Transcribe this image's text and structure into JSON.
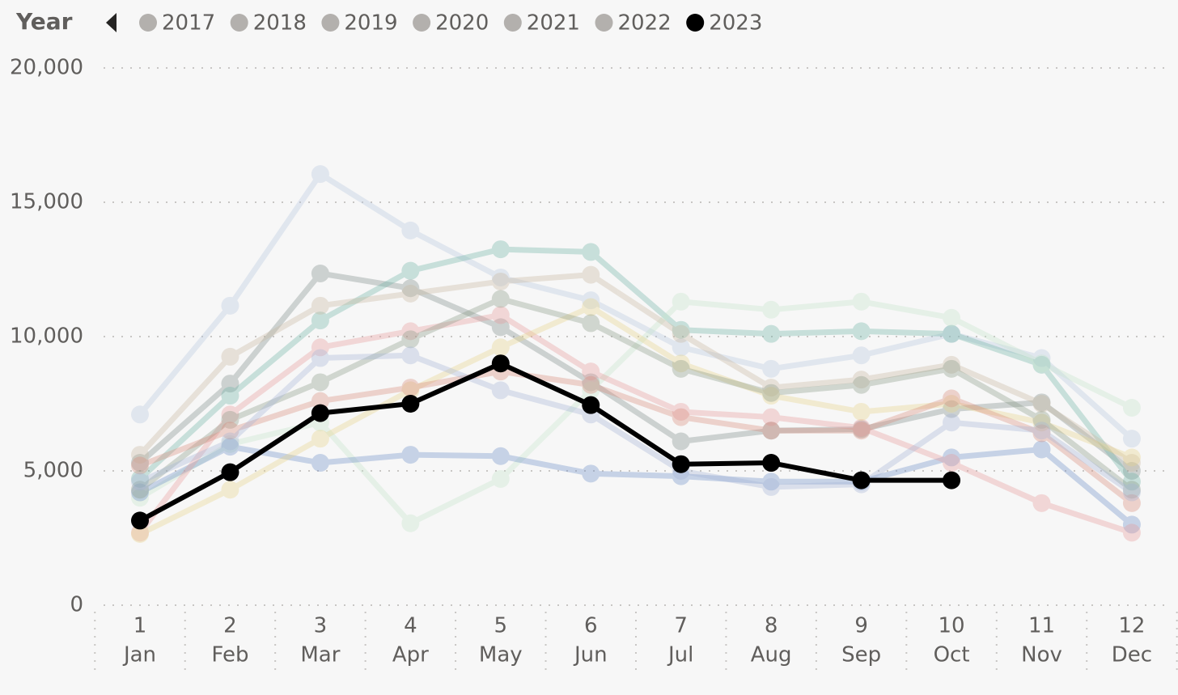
{
  "chart_data": {
    "type": "line",
    "legend_title": "Year",
    "month_numbers": [
      1,
      2,
      3,
      4,
      5,
      6,
      7,
      8,
      9,
      10,
      11,
      12
    ],
    "categories": [
      "Jan",
      "Feb",
      "Mar",
      "Apr",
      "May",
      "Jun",
      "Jul",
      "Aug",
      "Sep",
      "Oct",
      "Nov",
      "Dec"
    ],
    "ylim": [
      0,
      20000
    ],
    "yticks": [
      0,
      {
        "value": 5000,
        "label": "5,000"
      },
      {
        "value": 10000,
        "label": "10,000"
      },
      {
        "value": 15000,
        "label": "15,000"
      },
      {
        "value": 20000,
        "label": "20,000"
      }
    ],
    "grid": true,
    "highlight": "2023",
    "dim_color": "#b3b0ad",
    "series": [
      {
        "name": "2017",
        "color": "#b8c7e0",
        "values": [
          7100,
          11150,
          16050,
          13950,
          12200,
          11350,
          9600,
          8800,
          9300,
          10100,
          9200,
          6200
        ]
      },
      {
        "name": "2018",
        "color": "#7f8c8a",
        "values": [
          5300,
          8250,
          12350,
          11800,
          10350,
          8300,
          6100,
          6500,
          6550,
          7300,
          7550,
          5000
        ]
      },
      {
        "name": "2019",
        "color": "#6fb3a6",
        "values": [
          4700,
          7800,
          10600,
          12450,
          13250,
          13150,
          10250,
          10100,
          10200,
          10100,
          8950,
          4600
        ]
      },
      {
        "name": "2020",
        "color": "#c6e5cc",
        "values": [
          4000,
          6000,
          6800,
          3050,
          4700,
          8000,
          11300,
          11000,
          11300,
          10700,
          9000,
          7350
        ]
      },
      {
        "name": "2021",
        "color": "#c9b8a0",
        "values": [
          5600,
          9250,
          11150,
          11600,
          12050,
          12300,
          10100,
          8100,
          8400,
          8950,
          7500,
          5300
        ]
      },
      {
        "name": "2022",
        "color": "#6d8fc7",
        "values": [
          4200,
          5900,
          5300,
          5600,
          5550,
          4900,
          4800,
          4600,
          4600,
          5500,
          5800,
          3000
        ]
      },
      {
        "color": "#e79a9a",
        "values": [
          2700,
          7100,
          9600,
          10200,
          10800,
          8700,
          7200,
          7000,
          6600,
          5300,
          3800,
          2700
        ]
      },
      {
        "color": "#e8d48a",
        "values": [
          2650,
          4300,
          6200,
          8000,
          9600,
          11100,
          9000,
          7800,
          7200,
          7500,
          6800,
          5500
        ]
      },
      {
        "color": "#8a9a86",
        "values": [
          4300,
          6900,
          8300,
          9900,
          11400,
          10500,
          8800,
          7900,
          8200,
          8800,
          6900,
          4300
        ]
      },
      {
        "color": "#d98c7c",
        "values": [
          5200,
          6500,
          7600,
          8100,
          8700,
          8200,
          7000,
          6500,
          6500,
          7700,
          6400,
          3800
        ]
      },
      {
        "color": "#a5b4d6",
        "values": [
          4600,
          6100,
          9200,
          9300,
          8000,
          7100,
          5000,
          4400,
          4500,
          6800,
          6500,
          4200
        ]
      },
      {
        "name": "2023",
        "color": "#000000",
        "values": [
          3150,
          4950,
          7150,
          7500,
          9000,
          7450,
          5250,
          5300,
          4650,
          4650,
          null,
          null
        ]
      }
    ]
  }
}
